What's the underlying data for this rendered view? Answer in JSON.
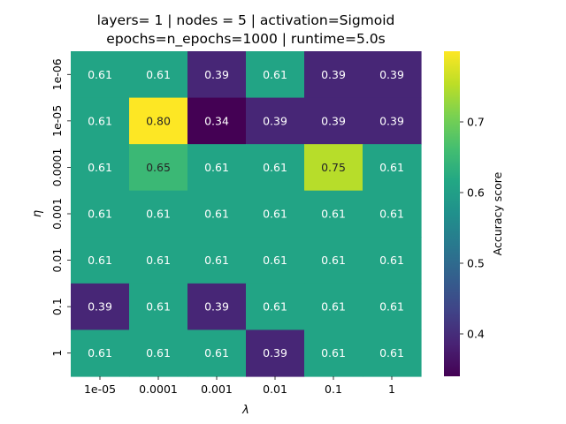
{
  "chart_data": {
    "type": "heatmap",
    "title_line1": "layers= 1 | nodes = 5 | activation=Sigmoid",
    "title_line2": "epochs=n_epochs=1000 | runtime=5.0s",
    "xlabel": "λ",
    "ylabel": "η",
    "x_categories": [
      "1e-05",
      "0.0001",
      "0.001",
      "0.01",
      "0.1",
      "1"
    ],
    "y_categories": [
      "1e-06",
      "1e-05",
      "0.0001",
      "0.001",
      "0.01",
      "0.1",
      "1"
    ],
    "values": [
      [
        0.61,
        0.61,
        0.39,
        0.61,
        0.39,
        0.39
      ],
      [
        0.61,
        0.8,
        0.34,
        0.39,
        0.39,
        0.39
      ],
      [
        0.61,
        0.65,
        0.61,
        0.61,
        0.75,
        0.61
      ],
      [
        0.61,
        0.61,
        0.61,
        0.61,
        0.61,
        0.61
      ],
      [
        0.61,
        0.61,
        0.61,
        0.61,
        0.61,
        0.61
      ],
      [
        0.39,
        0.61,
        0.39,
        0.61,
        0.61,
        0.61
      ],
      [
        0.61,
        0.61,
        0.61,
        0.39,
        0.61,
        0.61
      ]
    ],
    "value_labels": [
      [
        "0.61",
        "0.61",
        "0.39",
        "0.61",
        "0.39",
        "0.39"
      ],
      [
        "0.61",
        "0.80",
        "0.34",
        "0.39",
        "0.39",
        "0.39"
      ],
      [
        "0.61",
        "0.65",
        "0.61",
        "0.61",
        "0.75",
        "0.61"
      ],
      [
        "0.61",
        "0.61",
        "0.61",
        "0.61",
        "0.61",
        "0.61"
      ],
      [
        "0.61",
        "0.61",
        "0.61",
        "0.61",
        "0.61",
        "0.61"
      ],
      [
        "0.39",
        "0.61",
        "0.39",
        "0.61",
        "0.61",
        "0.61"
      ],
      [
        "0.61",
        "0.61",
        "0.61",
        "0.39",
        "0.61",
        "0.61"
      ]
    ],
    "colorscale": "viridis",
    "vmin": 0.34,
    "vmax": 0.8,
    "colorbar": {
      "label": "Accuracy score",
      "ticks": [
        0.4,
        0.5,
        0.6,
        0.7
      ],
      "tick_labels": [
        "0.4",
        "0.5",
        "0.6",
        "0.7"
      ]
    }
  }
}
